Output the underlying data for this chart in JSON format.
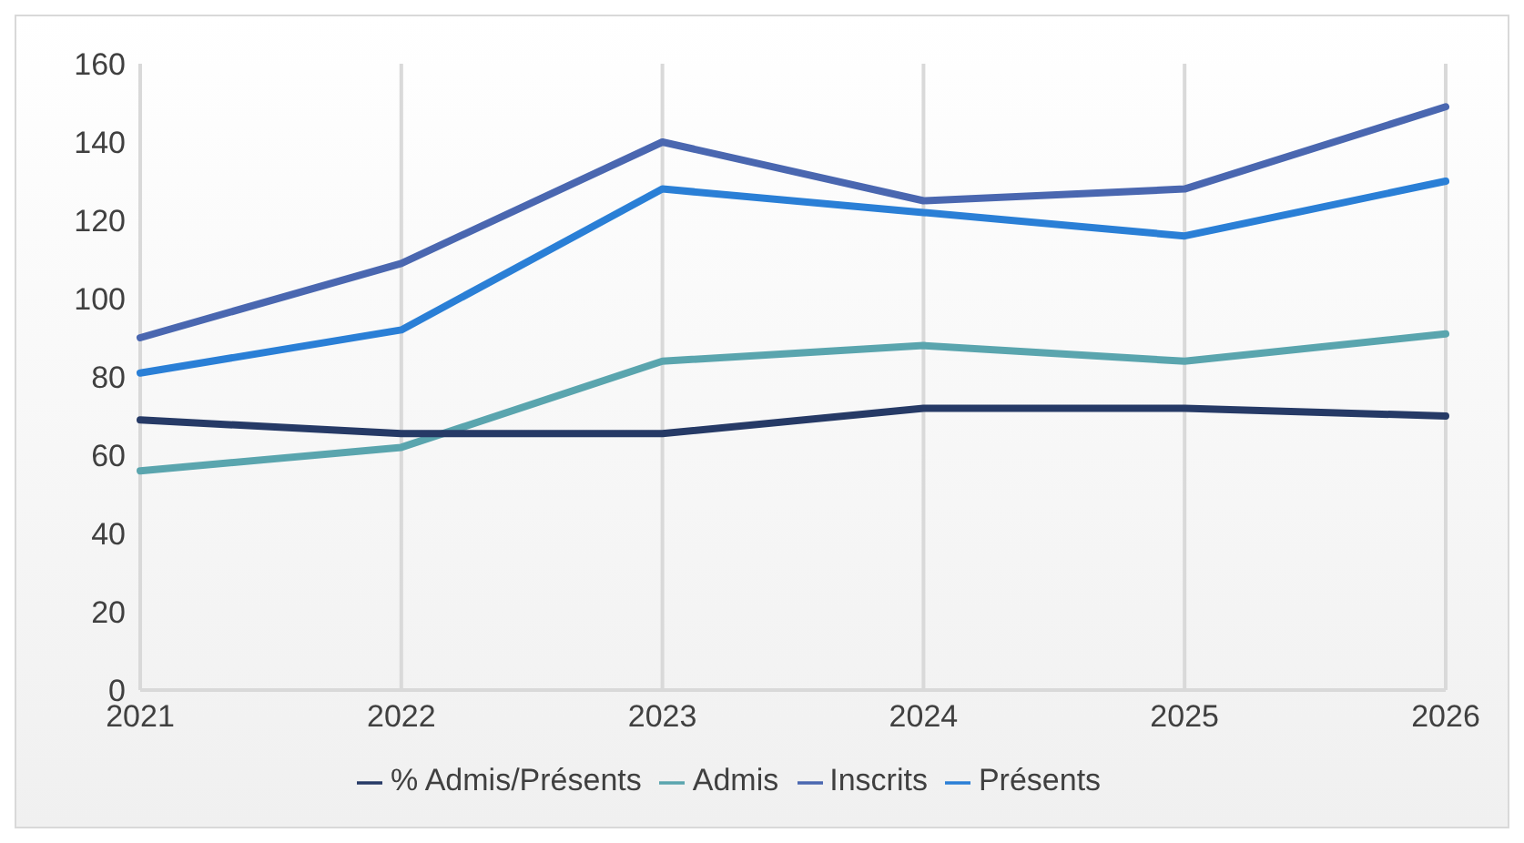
{
  "chart_data": {
    "type": "line",
    "categories": [
      "2021",
      "2022",
      "2023",
      "2024",
      "2025",
      "2026"
    ],
    "series": [
      {
        "name": "Inscrits",
        "color": "#4a67b0",
        "values": [
          90,
          109,
          140,
          125,
          128,
          149
        ]
      },
      {
        "name": "Présents",
        "color": "#2a7fd6",
        "values": [
          81,
          92,
          128,
          122,
          116,
          130
        ]
      },
      {
        "name": "Admis",
        "color": "#5aa5ae",
        "values": [
          56,
          62,
          84,
          88,
          84,
          91
        ]
      },
      {
        "name": "% Admis/Présents",
        "color": "#263a66",
        "values": [
          69,
          65.5,
          65.5,
          72,
          72,
          70
        ]
      }
    ],
    "ylim": [
      0,
      160
    ],
    "yticks": [
      0,
      20,
      40,
      60,
      80,
      100,
      120,
      140,
      160
    ],
    "grid": "x",
    "legend": "bottom",
    "marker": "none",
    "line_style": "solid"
  }
}
